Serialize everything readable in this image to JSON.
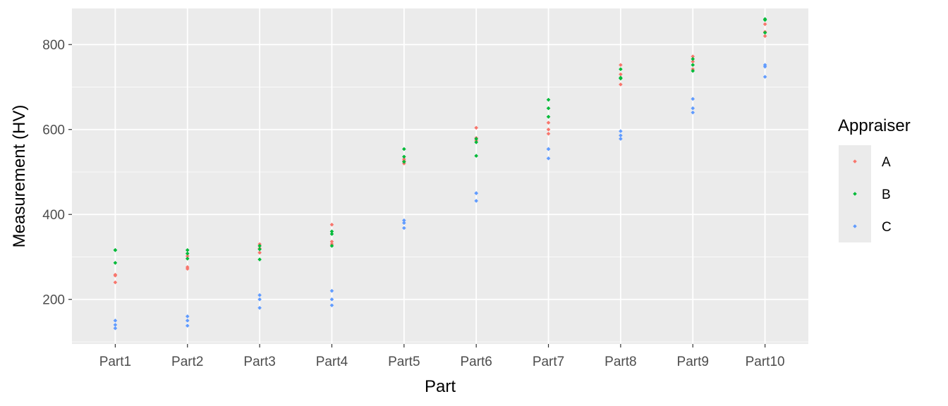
{
  "chart_data": {
    "type": "scatter",
    "xlabel": "Part",
    "ylabel": "Measurement (HV)",
    "categories": [
      "Part1",
      "Part2",
      "Part3",
      "Part4",
      "Part5",
      "Part6",
      "Part7",
      "Part8",
      "Part9",
      "Part10"
    ],
    "ylim": [
      95,
      885
    ],
    "yticks": [
      200,
      400,
      600,
      800
    ],
    "grid": true,
    "legend": {
      "title": "Appraiser",
      "placement": "right"
    },
    "series": [
      {
        "name": "A",
        "color": "#F8766D",
        "values": [
          [
            258,
            240,
            256
          ],
          [
            272,
            276,
            302
          ],
          [
            330,
            320,
            310
          ],
          [
            376,
            336,
            330
          ],
          [
            520,
            526,
            530
          ],
          [
            604,
            574,
            580
          ],
          [
            600,
            616,
            590
          ],
          [
            752,
            706,
            730
          ],
          [
            772,
            742,
            760
          ],
          [
            820,
            848,
            830
          ]
        ]
      },
      {
        "name": "B",
        "color": "#00BA38",
        "values": [
          [
            316,
            286,
            316
          ],
          [
            316,
            308,
            296
          ],
          [
            318,
            294,
            326
          ],
          [
            360,
            326,
            354
          ],
          [
            554,
            536,
            524
          ],
          [
            570,
            538,
            578
          ],
          [
            670,
            650,
            630
          ],
          [
            742,
            722,
            720
          ],
          [
            766,
            738,
            752
          ],
          [
            860,
            828,
            858
          ]
        ]
      },
      {
        "name": "C",
        "color": "#619CFF",
        "values": [
          [
            150,
            140,
            132
          ],
          [
            160,
            150,
            138
          ],
          [
            210,
            200,
            180
          ],
          [
            220,
            200,
            186
          ],
          [
            386,
            380,
            368
          ],
          [
            450,
            432,
            450
          ],
          [
            554,
            532,
            554
          ],
          [
            596,
            586,
            578
          ],
          [
            672,
            650,
            640
          ],
          [
            752,
            724,
            748
          ]
        ]
      }
    ]
  }
}
